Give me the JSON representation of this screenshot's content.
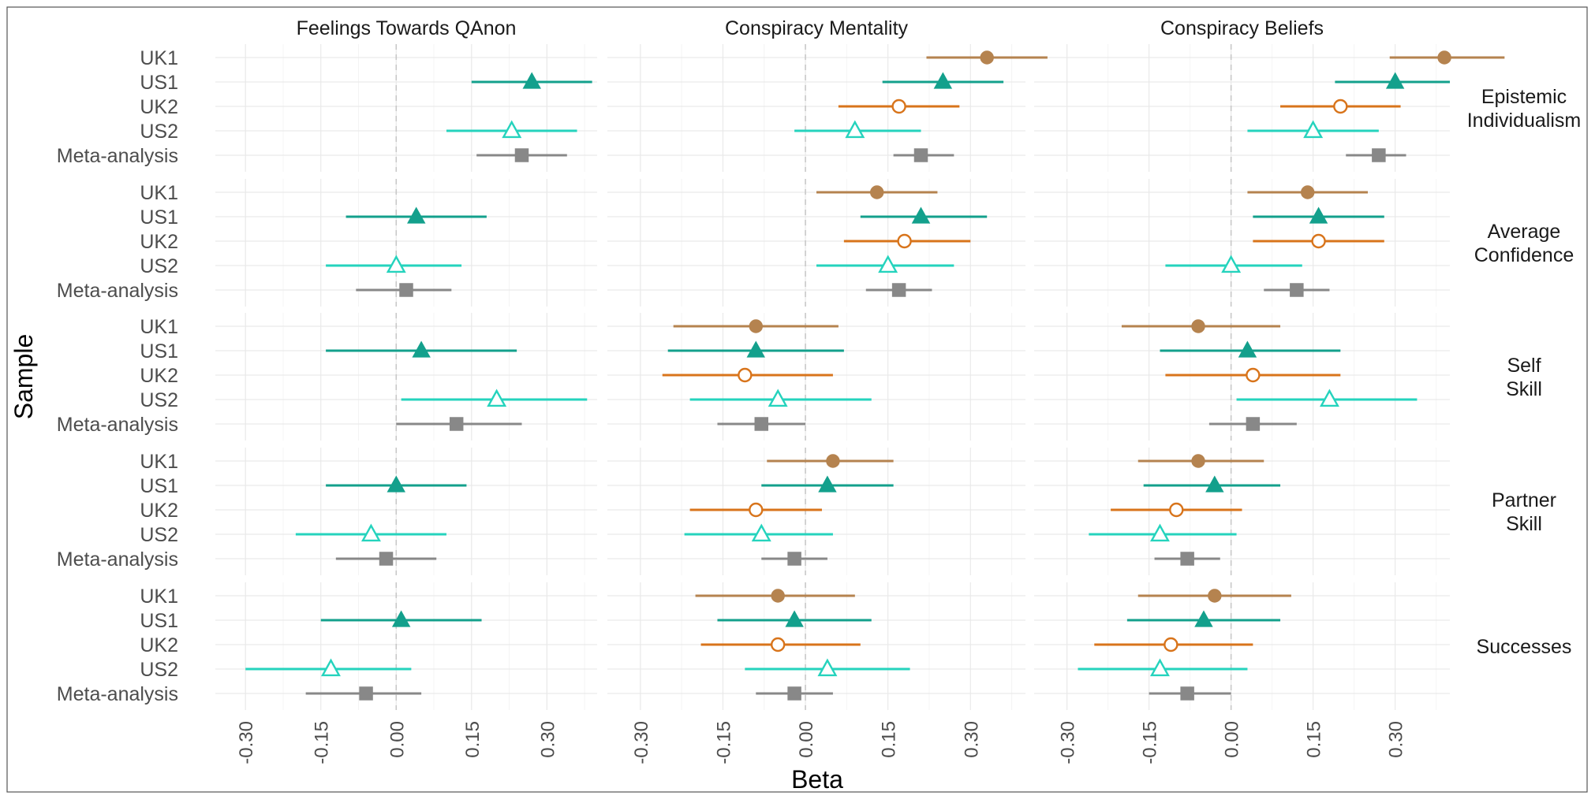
{
  "chart_data": {
    "type": "forest",
    "ylabel": "Sample",
    "xlabel": "Beta",
    "x_ticks": [
      "-0.30",
      "-0.15",
      "0.00",
      "0.15",
      "0.30"
    ],
    "x_tick_values": [
      -0.3,
      -0.15,
      0.0,
      0.15,
      0.3
    ],
    "xlim": [
      -0.36,
      0.4
    ],
    "grid": true,
    "reference_line": 0,
    "samples": [
      "UK1",
      "US1",
      "UK2",
      "US2",
      "Meta-analysis"
    ],
    "columns": [
      "Feelings Towards QAnon",
      "Conspiracy Mentality",
      "Conspiracy Beliefs"
    ],
    "rows": [
      {
        "label_lines": [
          "Epistemic",
          "Individualism"
        ]
      },
      {
        "label_lines": [
          "Average",
          "Confidence"
        ]
      },
      {
        "label_lines": [
          "Self",
          "Skill"
        ]
      },
      {
        "label_lines": [
          "Partner",
          "Skill"
        ]
      },
      {
        "label_lines": [
          "Successes"
        ]
      }
    ],
    "sample_styles": {
      "UK1": {
        "color": "#B5834F",
        "shape": "circle",
        "filled": true
      },
      "US1": {
        "color": "#13A08C",
        "shape": "triangle",
        "filled": true
      },
      "UK2": {
        "color": "#D8741B",
        "shape": "circle",
        "filled": false
      },
      "US2": {
        "color": "#25D3BD",
        "shape": "triangle",
        "filled": false
      },
      "Meta-analysis": {
        "color": "#888888",
        "shape": "square",
        "filled": true
      }
    },
    "estimates": [
      [
        {
          "UK1": null,
          "US1": [
            0.27,
            0.15,
            0.39
          ],
          "UK2": null,
          "US2": [
            0.23,
            0.1,
            0.36
          ],
          "Meta-analysis": [
            0.25,
            0.16,
            0.34
          ]
        },
        {
          "UK1": null,
          "US1": [
            0.04,
            -0.1,
            0.18
          ],
          "UK2": null,
          "US2": [
            0.0,
            -0.14,
            0.13
          ],
          "Meta-analysis": [
            0.02,
            -0.08,
            0.11
          ]
        },
        {
          "UK1": null,
          "US1": [
            0.05,
            -0.14,
            0.24
          ],
          "UK2": null,
          "US2": [
            0.2,
            0.01,
            0.38
          ],
          "Meta-analysis": [
            0.12,
            0.0,
            0.25
          ]
        },
        {
          "UK1": null,
          "US1": [
            0.0,
            -0.14,
            0.14
          ],
          "UK2": null,
          "US2": [
            -0.05,
            -0.2,
            0.1
          ],
          "Meta-analysis": [
            -0.02,
            -0.12,
            0.08
          ]
        },
        {
          "UK1": null,
          "US1": [
            0.01,
            -0.15,
            0.17
          ],
          "UK2": null,
          "US2": [
            -0.13,
            -0.3,
            0.03
          ],
          "Meta-analysis": [
            -0.06,
            -0.18,
            0.05
          ]
        }
      ],
      [
        {
          "UK1": [
            0.33,
            0.22,
            0.44
          ],
          "US1": [
            0.25,
            0.14,
            0.36
          ],
          "UK2": [
            0.17,
            0.06,
            0.28
          ],
          "US2": [
            0.09,
            -0.02,
            0.21
          ],
          "Meta-analysis": [
            0.21,
            0.16,
            0.27
          ]
        },
        {
          "UK1": [
            0.13,
            0.02,
            0.24
          ],
          "US1": [
            0.21,
            0.1,
            0.33
          ],
          "UK2": [
            0.18,
            0.07,
            0.3
          ],
          "US2": [
            0.15,
            0.02,
            0.27
          ],
          "Meta-analysis": [
            0.17,
            0.11,
            0.23
          ]
        },
        {
          "UK1": [
            -0.09,
            -0.24,
            0.06
          ],
          "US1": [
            -0.09,
            -0.25,
            0.07
          ],
          "UK2": [
            -0.11,
            -0.26,
            0.05
          ],
          "US2": [
            -0.05,
            -0.21,
            0.12
          ],
          "Meta-analysis": [
            -0.08,
            -0.16,
            0.0
          ]
        },
        {
          "UK1": [
            0.05,
            -0.07,
            0.16
          ],
          "US1": [
            0.04,
            -0.08,
            0.16
          ],
          "UK2": [
            -0.09,
            -0.21,
            0.03
          ],
          "US2": [
            -0.08,
            -0.22,
            0.05
          ],
          "Meta-analysis": [
            -0.02,
            -0.08,
            0.04
          ]
        },
        {
          "UK1": [
            -0.05,
            -0.2,
            0.09
          ],
          "US1": [
            -0.02,
            -0.16,
            0.12
          ],
          "UK2": [
            -0.05,
            -0.19,
            0.1
          ],
          "US2": [
            0.04,
            -0.11,
            0.19
          ],
          "Meta-analysis": [
            -0.02,
            -0.09,
            0.05
          ]
        }
      ],
      [
        {
          "UK1": [
            0.39,
            0.29,
            0.5
          ],
          "US1": [
            0.3,
            0.19,
            0.4
          ],
          "UK2": [
            0.2,
            0.09,
            0.31
          ],
          "US2": [
            0.15,
            0.03,
            0.27
          ],
          "Meta-analysis": [
            0.27,
            0.21,
            0.32
          ]
        },
        {
          "UK1": [
            0.14,
            0.03,
            0.25
          ],
          "US1": [
            0.16,
            0.04,
            0.28
          ],
          "UK2": [
            0.16,
            0.04,
            0.28
          ],
          "US2": [
            0.0,
            -0.12,
            0.13
          ],
          "Meta-analysis": [
            0.12,
            0.06,
            0.18
          ]
        },
        {
          "UK1": [
            -0.06,
            -0.2,
            0.09
          ],
          "US1": [
            0.03,
            -0.13,
            0.2
          ],
          "UK2": [
            0.04,
            -0.12,
            0.2
          ],
          "US2": [
            0.18,
            0.01,
            0.34
          ],
          "Meta-analysis": [
            0.04,
            -0.04,
            0.12
          ]
        },
        {
          "UK1": [
            -0.06,
            -0.17,
            0.06
          ],
          "US1": [
            -0.03,
            -0.16,
            0.09
          ],
          "UK2": [
            -0.1,
            -0.22,
            0.02
          ],
          "US2": [
            -0.13,
            -0.26,
            0.01
          ],
          "Meta-analysis": [
            -0.08,
            -0.14,
            -0.02
          ]
        },
        {
          "UK1": [
            -0.03,
            -0.17,
            0.11
          ],
          "US1": [
            -0.05,
            -0.19,
            0.09
          ],
          "UK2": [
            -0.11,
            -0.25,
            0.04
          ],
          "US2": [
            -0.13,
            -0.28,
            0.03
          ],
          "Meta-analysis": [
            -0.08,
            -0.15,
            0.0
          ]
        }
      ]
    ]
  }
}
